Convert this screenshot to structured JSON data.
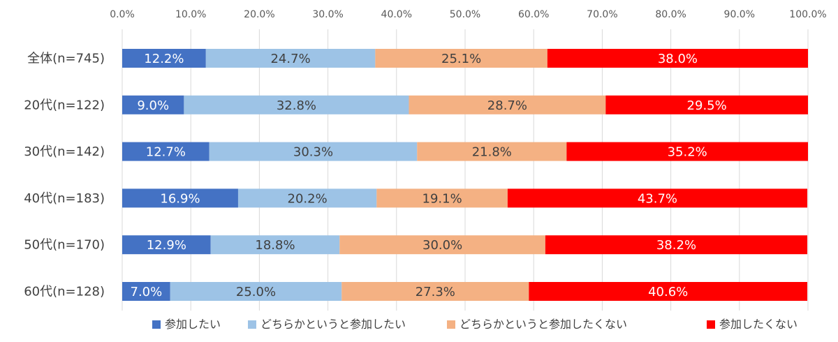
{
  "chart_data": {
    "type": "bar",
    "orientation": "horizontal",
    "stacked": true,
    "title": "",
    "xlabel": "",
    "ylabel": "",
    "xlim": [
      0,
      100
    ],
    "x_ticks": [
      "0.0%",
      "10.0%",
      "20.0%",
      "30.0%",
      "40.0%",
      "50.0%",
      "60.0%",
      "70.0%",
      "80.0%",
      "90.0%",
      "100.0%"
    ],
    "grid": true,
    "legend_position": "bottom",
    "categories": [
      "全体(n=745)",
      "20代(n=122)",
      "30代(n=142)",
      "40代(n=183)",
      "50代(n=170)",
      "60代(n=128)"
    ],
    "series": [
      {
        "name": "参加したい",
        "color": "#4472C4",
        "label_color": "#ffffff",
        "values": [
          12.2,
          9.0,
          12.7,
          16.9,
          12.9,
          7.0
        ],
        "labels": [
          "12.2%",
          "9.0%",
          "12.7%",
          "16.9%",
          "12.9%",
          "7.0%"
        ]
      },
      {
        "name": "どちらかというと参加したい",
        "color": "#9DC3E6",
        "label_color": "#404040",
        "values": [
          24.7,
          32.8,
          30.3,
          20.2,
          18.8,
          25.0
        ],
        "labels": [
          "24.7%",
          "32.8%",
          "30.3%",
          "20.2%",
          "18.8%",
          "25.0%"
        ]
      },
      {
        "name": "どちらかというと参加したくない",
        "color": "#F4B183",
        "label_color": "#404040",
        "values": [
          25.1,
          28.7,
          21.8,
          19.1,
          30.0,
          27.3
        ],
        "labels": [
          "25.1%",
          "28.7%",
          "21.8%",
          "19.1%",
          "30.0%",
          "27.3%"
        ]
      },
      {
        "name": "参加したくない",
        "color": "#FF0000",
        "label_color": "#ffffff",
        "values": [
          38.0,
          29.5,
          35.2,
          43.7,
          38.2,
          40.6
        ],
        "labels": [
          "38.0%",
          "29.5%",
          "35.2%",
          "43.7%",
          "38.2%",
          "40.6%"
        ]
      }
    ]
  }
}
